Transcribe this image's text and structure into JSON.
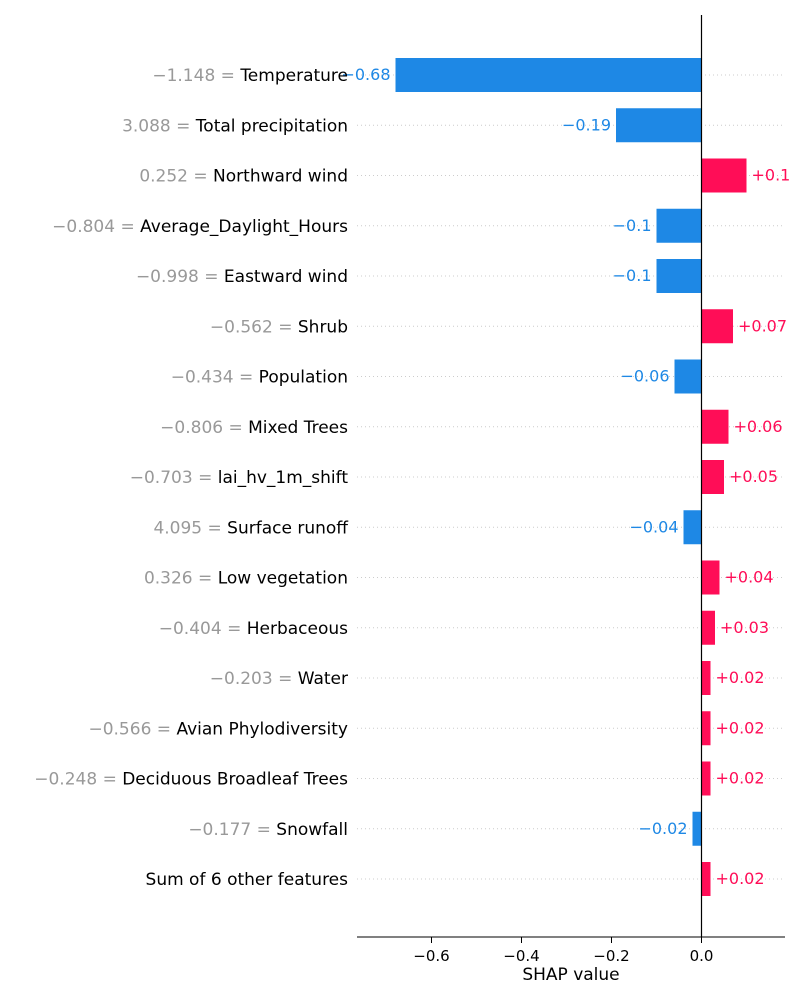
{
  "chart_data": {
    "type": "bar",
    "orientation": "horizontal",
    "xlabel": "SHAP value",
    "xlim": [
      -0.78,
      0.18
    ],
    "xticks": [
      -0.6,
      -0.4,
      -0.2,
      0.0
    ],
    "xtick_labels": [
      "−0.6",
      "−0.4",
      "−0.2",
      "0.0"
    ],
    "grid": "dotted horizontal guide lines per feature",
    "colors": {
      "positive": "#ff0d57",
      "negative": "#1e88e5",
      "feature_value": "#999999"
    },
    "features": [
      {
        "value": "−1.148",
        "name": "Temperature",
        "shap": -0.68,
        "label": "−0.68"
      },
      {
        "value": "3.088",
        "name": "Total precipitation",
        "shap": -0.19,
        "label": "−0.19"
      },
      {
        "value": "0.252",
        "name": "Northward wind",
        "shap": 0.1,
        "label": "+0.1"
      },
      {
        "value": "−0.804",
        "name": "Average_Daylight_Hours",
        "shap": -0.1,
        "label": "−0.1"
      },
      {
        "value": "−0.998",
        "name": "Eastward wind",
        "shap": -0.1,
        "label": "−0.1"
      },
      {
        "value": "−0.562",
        "name": "Shrub",
        "shap": 0.07,
        "label": "+0.07"
      },
      {
        "value": "−0.434",
        "name": "Population",
        "shap": -0.06,
        "label": "−0.06"
      },
      {
        "value": "−0.806",
        "name": "Mixed Trees",
        "shap": 0.06,
        "label": "+0.06"
      },
      {
        "value": "−0.703",
        "name": "lai_hv_1m_shift",
        "shap": 0.05,
        "label": "+0.05"
      },
      {
        "value": "4.095",
        "name": "Surface runoff",
        "shap": -0.04,
        "label": "−0.04"
      },
      {
        "value": "0.326",
        "name": "Low vegetation",
        "shap": 0.04,
        "label": "+0.04"
      },
      {
        "value": "−0.404",
        "name": "Herbaceous",
        "shap": 0.03,
        "label": "+0.03"
      },
      {
        "value": "−0.203",
        "name": "Water",
        "shap": 0.02,
        "label": "+0.02"
      },
      {
        "value": "−0.566",
        "name": "Avian Phylodiversity",
        "shap": 0.02,
        "label": "+0.02"
      },
      {
        "value": "−0.248",
        "name": "Deciduous Broadleaf Trees",
        "shap": 0.02,
        "label": "+0.02"
      },
      {
        "value": "−0.177",
        "name": "Snowfall",
        "shap": -0.02,
        "label": "−0.02"
      },
      {
        "value": "",
        "name": "Sum of 6 other features",
        "shap": 0.02,
        "label": "+0.02"
      }
    ]
  }
}
